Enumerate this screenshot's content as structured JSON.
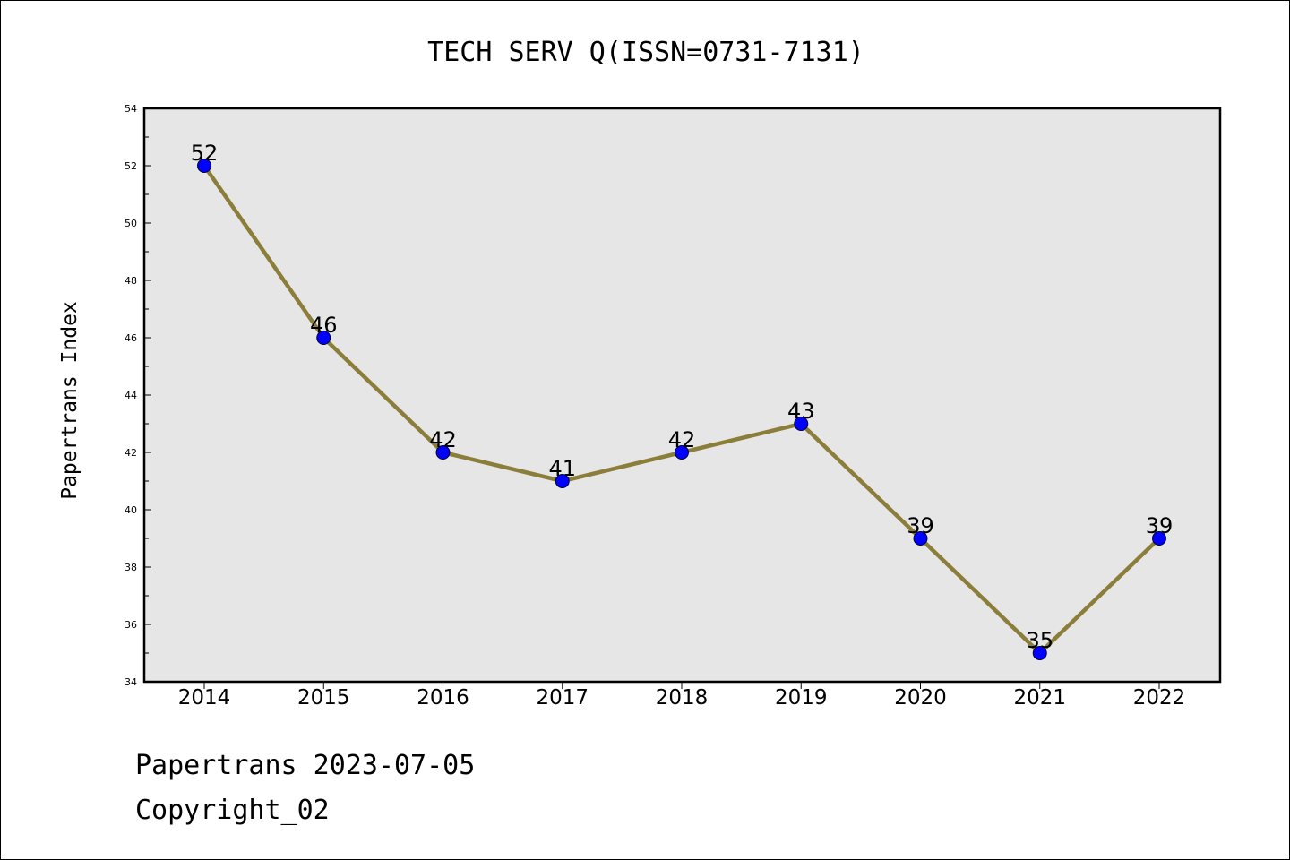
{
  "chart_data": {
    "type": "line",
    "title": "TECH SERV Q(ISSN=0731-7131)",
    "xlabel": "",
    "ylabel": "Papertrans Index",
    "categories": [
      "2014",
      "2015",
      "2016",
      "2017",
      "2018",
      "2019",
      "2020",
      "2021",
      "2022"
    ],
    "values": [
      52,
      46,
      42,
      41,
      42,
      43,
      39,
      35,
      39
    ],
    "data_labels": [
      "52",
      "46",
      "42",
      "41",
      "42",
      "43",
      "39",
      "35",
      "39"
    ],
    "ylim": [
      34,
      54
    ],
    "yticks": [
      "34",
      "36",
      "38",
      "40",
      "42",
      "44",
      "46",
      "48",
      "50",
      "52",
      "54"
    ],
    "grid": false,
    "line_color": "#8b7d3a",
    "marker_color": "#0000ff",
    "plot_background": "#e6e6e6"
  },
  "footer": {
    "line1": "Papertrans 2023-07-05",
    "line2": "Copyright_02"
  }
}
